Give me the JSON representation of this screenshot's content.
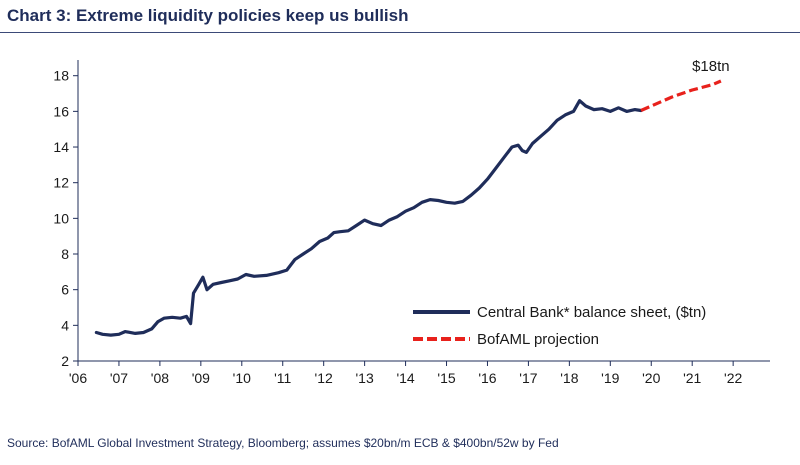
{
  "header": {
    "title": "Chart 3: Extreme liquidity policies keep us bullish"
  },
  "footer": {
    "source": "Source: BofAML Global Investment Strategy, Bloomberg; assumes $20bn/m ECB & $400bn/52w by Fed"
  },
  "chart_data": {
    "type": "line",
    "title": "Chart 3: Extreme liquidity policies keep us bullish",
    "xlabel": "",
    "ylabel": "",
    "xlim": [
      2006,
      2022.9
    ],
    "ylim": [
      2,
      18.6
    ],
    "yticks": [
      2,
      4,
      6,
      8,
      10,
      12,
      14,
      16,
      18
    ],
    "xticks": [
      {
        "value": 2006,
        "label": "'06"
      },
      {
        "value": 2007,
        "label": "'07"
      },
      {
        "value": 2008,
        "label": "'08"
      },
      {
        "value": 2009,
        "label": "'09"
      },
      {
        "value": 2010,
        "label": "'10"
      },
      {
        "value": 2011,
        "label": "'11"
      },
      {
        "value": 2012,
        "label": "'12"
      },
      {
        "value": 2013,
        "label": "'13"
      },
      {
        "value": 2014,
        "label": "'14"
      },
      {
        "value": 2015,
        "label": "'15"
      },
      {
        "value": 2016,
        "label": "'16"
      },
      {
        "value": 2017,
        "label": "'17"
      },
      {
        "value": 2018,
        "label": "'18"
      },
      {
        "value": 2019,
        "label": "'19"
      },
      {
        "value": 2020,
        "label": "'20"
      },
      {
        "value": 2021,
        "label": "'21"
      },
      {
        "value": 2022,
        "label": "'22"
      }
    ],
    "grid": false,
    "legend_position": "bottom-right",
    "annotation": "$18tn",
    "series": [
      {
        "name": "Central Bank* balance sheet, ($tn)",
        "color": "#1f2d5a",
        "style": "solid",
        "points": [
          [
            2006.45,
            3.6
          ],
          [
            2006.6,
            3.5
          ],
          [
            2006.8,
            3.45
          ],
          [
            2007.0,
            3.5
          ],
          [
            2007.15,
            3.65
          ],
          [
            2007.4,
            3.55
          ],
          [
            2007.6,
            3.6
          ],
          [
            2007.8,
            3.8
          ],
          [
            2007.95,
            4.2
          ],
          [
            2008.1,
            4.4
          ],
          [
            2008.3,
            4.45
          ],
          [
            2008.5,
            4.4
          ],
          [
            2008.65,
            4.5
          ],
          [
            2008.75,
            4.1
          ],
          [
            2008.82,
            5.8
          ],
          [
            2008.95,
            6.3
          ],
          [
            2009.05,
            6.7
          ],
          [
            2009.15,
            6.0
          ],
          [
            2009.3,
            6.3
          ],
          [
            2009.5,
            6.4
          ],
          [
            2009.7,
            6.5
          ],
          [
            2009.9,
            6.6
          ],
          [
            2010.1,
            6.85
          ],
          [
            2010.3,
            6.75
          ],
          [
            2010.6,
            6.8
          ],
          [
            2010.9,
            6.95
          ],
          [
            2011.1,
            7.1
          ],
          [
            2011.3,
            7.7
          ],
          [
            2011.5,
            8.0
          ],
          [
            2011.7,
            8.3
          ],
          [
            2011.9,
            8.7
          ],
          [
            2012.1,
            8.9
          ],
          [
            2012.25,
            9.2
          ],
          [
            2012.4,
            9.25
          ],
          [
            2012.6,
            9.3
          ],
          [
            2012.8,
            9.6
          ],
          [
            2013.0,
            9.9
          ],
          [
            2013.2,
            9.7
          ],
          [
            2013.4,
            9.6
          ],
          [
            2013.6,
            9.9
          ],
          [
            2013.8,
            10.1
          ],
          [
            2014.0,
            10.4
          ],
          [
            2014.2,
            10.6
          ],
          [
            2014.4,
            10.9
          ],
          [
            2014.6,
            11.05
          ],
          [
            2014.8,
            11.0
          ],
          [
            2015.0,
            10.9
          ],
          [
            2015.2,
            10.85
          ],
          [
            2015.4,
            10.95
          ],
          [
            2015.6,
            11.3
          ],
          [
            2015.8,
            11.7
          ],
          [
            2016.0,
            12.2
          ],
          [
            2016.2,
            12.8
          ],
          [
            2016.4,
            13.4
          ],
          [
            2016.6,
            14.0
          ],
          [
            2016.75,
            14.1
          ],
          [
            2016.85,
            13.8
          ],
          [
            2016.95,
            13.7
          ],
          [
            2017.1,
            14.2
          ],
          [
            2017.3,
            14.6
          ],
          [
            2017.5,
            15.0
          ],
          [
            2017.7,
            15.5
          ],
          [
            2017.9,
            15.8
          ],
          [
            2018.1,
            16.0
          ],
          [
            2018.25,
            16.6
          ],
          [
            2018.4,
            16.3
          ],
          [
            2018.6,
            16.1
          ],
          [
            2018.8,
            16.15
          ],
          [
            2019.0,
            16.0
          ],
          [
            2019.2,
            16.2
          ],
          [
            2019.4,
            16.0
          ],
          [
            2019.6,
            16.1
          ],
          [
            2019.75,
            16.05
          ]
        ]
      },
      {
        "name": "BofAML projection",
        "color": "#e8211c",
        "style": "dashed",
        "points": [
          [
            2019.75,
            16.05
          ],
          [
            2020.0,
            16.3
          ],
          [
            2020.5,
            16.8
          ],
          [
            2021.0,
            17.2
          ],
          [
            2021.5,
            17.5
          ],
          [
            2021.7,
            17.7
          ]
        ]
      }
    ]
  }
}
